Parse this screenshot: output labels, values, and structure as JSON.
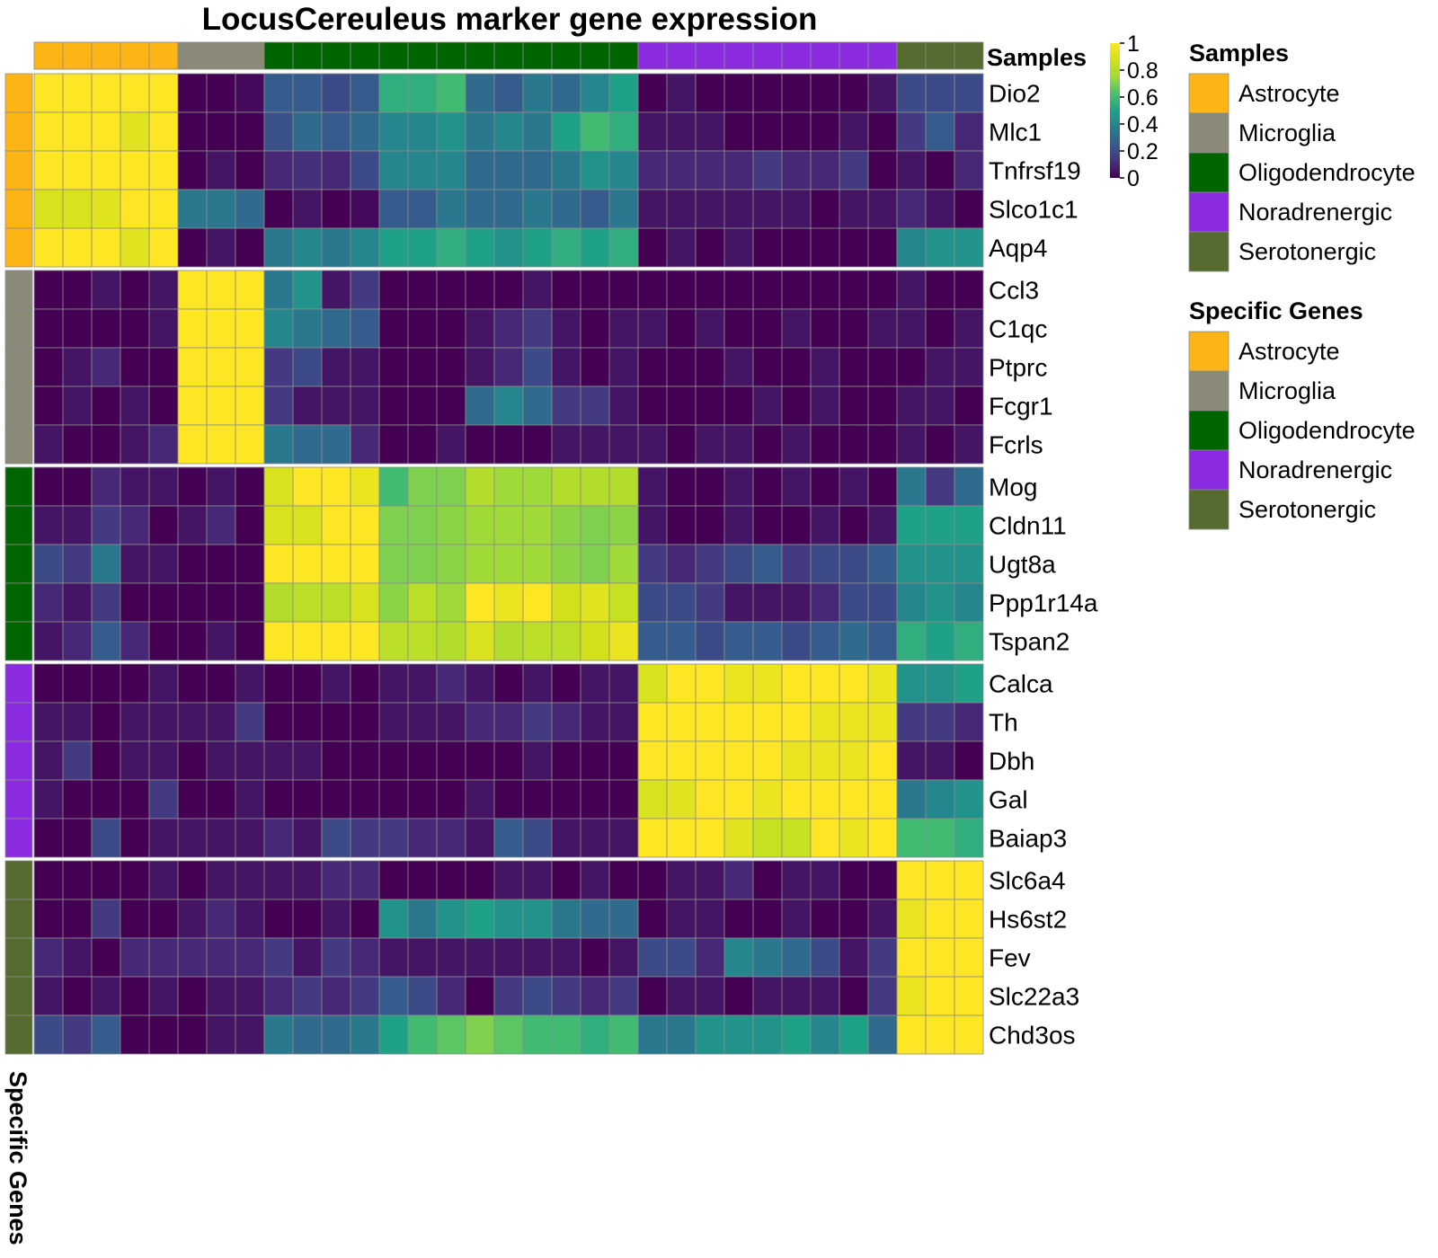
{
  "chart_data": {
    "type": "heatmap",
    "title": "LocusCereuleus marker gene expression",
    "column_annotation_label": "Samples",
    "row_annotation_label": "Specific Genes",
    "colorbar": {
      "ticks": [
        "1",
        "0.8",
        "0.6",
        "0.4",
        "0.2",
        "0"
      ],
      "range": [
        0,
        1
      ],
      "palette": "viridis"
    },
    "cell_types": [
      "Astrocyte",
      "Microglia",
      "Oligodendrocyte",
      "Noradrenergic",
      "Serotonergic"
    ],
    "type_colors": {
      "Astrocyte": "#FDB515",
      "Microglia": "#8B8977",
      "Oligodendrocyte": "#006400",
      "Noradrenergic": "#8A2BE2",
      "Serotonergic": "#556B2F"
    },
    "sample_groups": [
      {
        "type": "Astrocyte",
        "n": 5
      },
      {
        "type": "Microglia",
        "n": 3
      },
      {
        "type": "Oligodendrocyte",
        "n": 13
      },
      {
        "type": "Noradrenergic",
        "n": 9
      },
      {
        "type": "Serotonergic",
        "n": 3
      }
    ],
    "gene_groups": [
      {
        "type": "Astrocyte",
        "genes": [
          "Dio2",
          "Mlc1",
          "Tnfrsf19",
          "Slco1c1",
          "Aqp4"
        ]
      },
      {
        "type": "Microglia",
        "genes": [
          "Ccl3",
          "C1qc",
          "Ptprc",
          "Fcgr1",
          "Fcrls"
        ]
      },
      {
        "type": "Oligodendrocyte",
        "genes": [
          "Mog",
          "Cldn11",
          "Ugt8a",
          "Ppp1r14a",
          "Tspan2"
        ]
      },
      {
        "type": "Noradrenergic",
        "genes": [
          "Calca",
          "Th",
          "Dbh",
          "Gal",
          "Baiap3"
        ]
      },
      {
        "type": "Serotonergic",
        "genes": [
          "Slc6a4",
          "Hs6st2",
          "Fev",
          "Slc22a3",
          "Chd3os"
        ]
      }
    ],
    "values": [
      [
        1,
        1,
        1,
        1,
        1,
        0,
        0,
        0.02,
        0.25,
        0.25,
        0.2,
        0.25,
        0.55,
        0.55,
        0.6,
        0.3,
        0.25,
        0.35,
        0.3,
        0.4,
        0.5,
        0,
        0.05,
        0,
        0,
        0,
        0,
        0,
        0,
        0.05,
        0.2,
        0.2,
        0.2
      ],
      [
        1,
        1,
        1,
        0.92,
        1,
        0,
        0,
        0,
        0.22,
        0.3,
        0.25,
        0.3,
        0.4,
        0.4,
        0.45,
        0.35,
        0.4,
        0.35,
        0.5,
        0.6,
        0.55,
        0.05,
        0.05,
        0.05,
        0,
        0,
        0,
        0,
        0.05,
        0,
        0.15,
        0.25,
        0.1
      ],
      [
        1,
        1,
        1,
        1,
        1,
        0,
        0.05,
        0,
        0.1,
        0.12,
        0.1,
        0.2,
        0.4,
        0.4,
        0.4,
        0.3,
        0.3,
        0.3,
        0.35,
        0.45,
        0.4,
        0.1,
        0.1,
        0.1,
        0.1,
        0.15,
        0.1,
        0.1,
        0.15,
        0,
        0.05,
        0,
        0.1
      ],
      [
        0.9,
        0.9,
        0.92,
        1,
        1,
        0.35,
        0.35,
        0.3,
        0,
        0.05,
        0,
        0.02,
        0.25,
        0.25,
        0.35,
        0.3,
        0.3,
        0.35,
        0.3,
        0.25,
        0.35,
        0.05,
        0.05,
        0.05,
        0.05,
        0.05,
        0.05,
        0,
        0.05,
        0.05,
        0.1,
        0.05,
        0
      ],
      [
        1,
        1,
        1,
        0.92,
        1,
        0,
        0.05,
        0,
        0.35,
        0.4,
        0.35,
        0.4,
        0.5,
        0.5,
        0.55,
        0.5,
        0.45,
        0.5,
        0.55,
        0.5,
        0.55,
        0,
        0.05,
        0,
        0.05,
        0,
        0,
        0,
        0,
        0,
        0.4,
        0.45,
        0.45
      ],
      [
        0,
        0,
        0.05,
        0,
        0.05,
        1,
        1,
        1,
        0.35,
        0.45,
        0.05,
        0.15,
        0,
        0,
        0,
        0,
        0,
        0.05,
        0,
        0,
        0,
        0,
        0,
        0,
        0,
        0,
        0,
        0,
        0,
        0,
        0.05,
        0,
        0
      ],
      [
        0,
        0,
        0,
        0,
        0.05,
        1,
        1,
        1,
        0.4,
        0.35,
        0.3,
        0.25,
        0,
        0,
        0,
        0.05,
        0.1,
        0.15,
        0.05,
        0,
        0.05,
        0.05,
        0,
        0.05,
        0,
        0,
        0.05,
        0,
        0,
        0.05,
        0.05,
        0,
        0.05
      ],
      [
        0,
        0.05,
        0.1,
        0,
        0,
        1,
        1,
        1,
        0.15,
        0.2,
        0.05,
        0.05,
        0,
        0,
        0,
        0.05,
        0.1,
        0.2,
        0.05,
        0,
        0.05,
        0,
        0,
        0,
        0.05,
        0,
        0,
        0.05,
        0,
        0,
        0,
        0.05,
        0.05
      ],
      [
        0,
        0.05,
        0,
        0.05,
        0,
        1,
        1,
        1,
        0.15,
        0.05,
        0.05,
        0.05,
        0,
        0,
        0,
        0.3,
        0.4,
        0.3,
        0.15,
        0.15,
        0.05,
        0,
        0,
        0,
        0,
        0.05,
        0,
        0.05,
        0,
        0,
        0.05,
        0.05,
        0
      ],
      [
        0.05,
        0,
        0,
        0.05,
        0.1,
        1,
        1,
        1,
        0.35,
        0.3,
        0.3,
        0.1,
        0,
        0,
        0.05,
        0,
        0,
        0,
        0.05,
        0.05,
        0.05,
        0.05,
        0,
        0.05,
        0.05,
        0,
        0.05,
        0,
        0,
        0,
        0.05,
        0,
        0.05
      ],
      [
        0,
        0,
        0.1,
        0.05,
        0.05,
        0,
        0.05,
        0,
        0.9,
        1,
        1,
        0.95,
        0.6,
        0.7,
        0.7,
        0.8,
        0.75,
        0.75,
        0.8,
        0.8,
        0.8,
        0.05,
        0,
        0,
        0.05,
        0,
        0.05,
        0,
        0.05,
        0,
        0.35,
        0.15,
        0.3
      ],
      [
        0.05,
        0.05,
        0.15,
        0.1,
        0,
        0.05,
        0.1,
        0,
        0.9,
        0.9,
        1,
        1,
        0.7,
        0.7,
        0.72,
        0.75,
        0.75,
        0.75,
        0.72,
        0.7,
        0.72,
        0.05,
        0,
        0,
        0.05,
        0,
        0,
        0.05,
        0,
        0.05,
        0.5,
        0.5,
        0.5
      ],
      [
        0.2,
        0.15,
        0.35,
        0.05,
        0.05,
        0,
        0,
        0,
        1,
        1,
        1,
        1,
        0.7,
        0.7,
        0.72,
        0.75,
        0.75,
        0.75,
        0.72,
        0.7,
        0.75,
        0.15,
        0.1,
        0.15,
        0.2,
        0.25,
        0.15,
        0.2,
        0.2,
        0.25,
        0.45,
        0.45,
        0.45
      ],
      [
        0.1,
        0.05,
        0.15,
        0,
        0,
        0,
        0,
        0,
        0.8,
        0.82,
        0.82,
        0.9,
        0.72,
        0.82,
        0.75,
        1,
        0.95,
        1,
        0.88,
        0.92,
        0.85,
        0.2,
        0.2,
        0.15,
        0.05,
        0.05,
        0.05,
        0.1,
        0.2,
        0.2,
        0.4,
        0.45,
        0.4
      ],
      [
        0.05,
        0.1,
        0.25,
        0.1,
        0,
        0,
        0.05,
        0,
        1,
        1,
        1,
        1,
        0.82,
        0.82,
        0.8,
        0.9,
        0.8,
        0.82,
        0.82,
        0.88,
        0.95,
        0.25,
        0.25,
        0.2,
        0.25,
        0.25,
        0.2,
        0.25,
        0.3,
        0.25,
        0.55,
        0.5,
        0.55
      ],
      [
        0,
        0,
        0,
        0,
        0.05,
        0,
        0,
        0.05,
        0,
        0,
        0.05,
        0,
        0.05,
        0.05,
        0.1,
        0.05,
        0,
        0.05,
        0,
        0.05,
        0.05,
        0.9,
        1,
        1,
        0.95,
        0.95,
        1,
        1,
        1,
        0.95,
        0.45,
        0.45,
        0.5
      ],
      [
        0.05,
        0.05,
        0,
        0.05,
        0.05,
        0.05,
        0.05,
        0.15,
        0,
        0,
        0,
        0,
        0.05,
        0.05,
        0.05,
        0.1,
        0.1,
        0.15,
        0.1,
        0.05,
        0.05,
        1,
        1,
        1,
        1,
        1,
        1,
        0.95,
        0.95,
        0.95,
        0.15,
        0.15,
        0.1
      ],
      [
        0.05,
        0.15,
        0,
        0.05,
        0.05,
        0,
        0.05,
        0.05,
        0.05,
        0.05,
        0,
        0,
        0,
        0,
        0,
        0,
        0,
        0.05,
        0,
        0,
        0,
        1,
        1,
        1,
        1,
        1,
        0.95,
        0.95,
        0.95,
        1,
        0.05,
        0.05,
        0
      ],
      [
        0.05,
        0,
        0,
        0,
        0.15,
        0,
        0,
        0.05,
        0,
        0,
        0,
        0,
        0,
        0,
        0,
        0.05,
        0,
        0,
        0,
        0,
        0,
        0.9,
        0.92,
        1,
        1,
        0.95,
        1,
        1,
        1,
        1,
        0.35,
        0.4,
        0.45
      ],
      [
        0,
        0,
        0.2,
        0,
        0.05,
        0.05,
        0.05,
        0.05,
        0.1,
        0.05,
        0.2,
        0.15,
        0.15,
        0.1,
        0.1,
        0.05,
        0.25,
        0.2,
        0.05,
        0.05,
        0.05,
        1,
        1,
        1,
        0.92,
        0.85,
        0.85,
        1,
        0.95,
        1,
        0.6,
        0.6,
        0.55
      ],
      [
        0,
        0,
        0,
        0,
        0.05,
        0,
        0.05,
        0.05,
        0.05,
        0.05,
        0.1,
        0.1,
        0,
        0,
        0,
        0,
        0.05,
        0.05,
        0,
        0.05,
        0,
        0,
        0.05,
        0.05,
        0.1,
        0,
        0.05,
        0.05,
        0,
        0,
        1,
        1,
        1
      ],
      [
        0,
        0,
        0.15,
        0,
        0,
        0.05,
        0.1,
        0.05,
        0,
        0,
        0.05,
        0,
        0.45,
        0.35,
        0.45,
        0.5,
        0.45,
        0.45,
        0.35,
        0.3,
        0.3,
        0,
        0.05,
        0.05,
        0,
        0,
        0.05,
        0,
        0,
        0.05,
        0.95,
        1,
        1
      ],
      [
        0.1,
        0.05,
        0,
        0.1,
        0.1,
        0.1,
        0.1,
        0.1,
        0.15,
        0.05,
        0.15,
        0.1,
        0.05,
        0.05,
        0.05,
        0.05,
        0.05,
        0.05,
        0.05,
        0,
        0.05,
        0.2,
        0.2,
        0.1,
        0.4,
        0.35,
        0.3,
        0.2,
        0.05,
        0.15,
        1,
        1,
        1
      ],
      [
        0.05,
        0,
        0.05,
        0,
        0.05,
        0,
        0.05,
        0.05,
        0.1,
        0.15,
        0.1,
        0.15,
        0.25,
        0.2,
        0.1,
        0,
        0.15,
        0.2,
        0.15,
        0.1,
        0.15,
        0,
        0.05,
        0.05,
        0,
        0.05,
        0.05,
        0.05,
        0,
        0.15,
        0.95,
        1,
        1
      ],
      [
        0.2,
        0.15,
        0.25,
        0,
        0,
        0,
        0.05,
        0.05,
        0.35,
        0.3,
        0.3,
        0.35,
        0.5,
        0.6,
        0.65,
        0.7,
        0.65,
        0.6,
        0.6,
        0.55,
        0.6,
        0.35,
        0.35,
        0.45,
        0.45,
        0.45,
        0.5,
        0.4,
        0.5,
        0.3,
        1,
        1,
        1
      ]
    ]
  }
}
